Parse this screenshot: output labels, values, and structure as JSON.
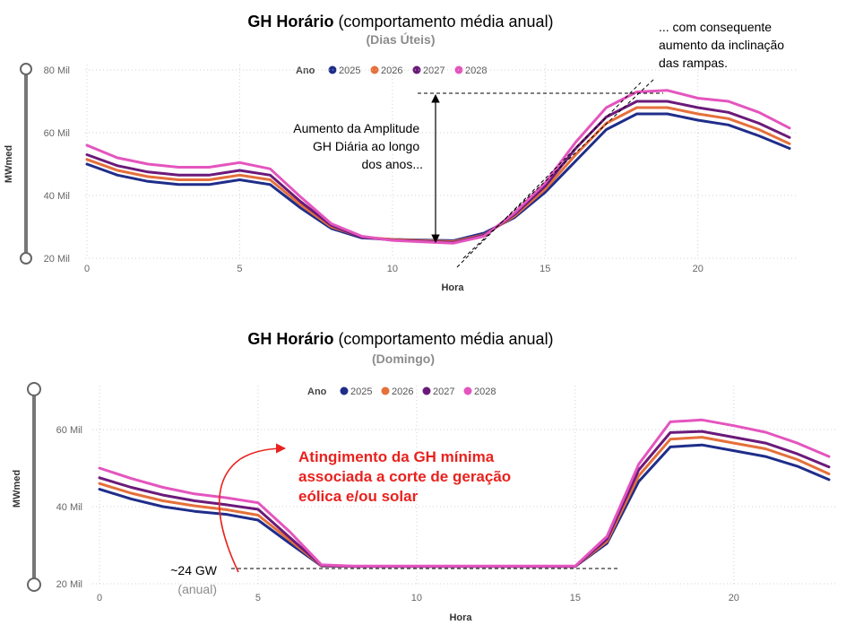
{
  "colors": {
    "s2025": "#1f2d8a",
    "s2026": "#e5703a",
    "s2027": "#6b1a7a",
    "s2028": "#e455be",
    "grid": "#d0d0d0",
    "tick": "#666666",
    "annotation_red": "#e8221e",
    "subtitle_gray": "#8c8c8c",
    "slider": "#777777"
  },
  "legend": {
    "title": "Ano",
    "years": [
      "2025",
      "2026",
      "2027",
      "2028"
    ]
  },
  "chart_data": [
    {
      "type": "line",
      "title_bold": "GH Horário",
      "title_rest": " (comportamento média anual)",
      "subtitle": "(Dias Úteis)",
      "xlabel": "Hora",
      "ylabel": "MWmed",
      "xlim": [
        0,
        23
      ],
      "ylim": [
        20,
        80
      ],
      "xticks": [
        0,
        5,
        10,
        15,
        20
      ],
      "yticks": [
        20,
        40,
        60,
        80
      ],
      "ytick_labels": [
        "20 Mil",
        "40 Mil",
        "60 Mil",
        "80 Mil"
      ],
      "grid": true,
      "legend_position": "top-left",
      "x": [
        0,
        1,
        2,
        3,
        4,
        5,
        6,
        7,
        8,
        9,
        10,
        11,
        12,
        13,
        14,
        15,
        16,
        17,
        18,
        19,
        20,
        21,
        22,
        23
      ],
      "series": [
        {
          "name": "2025",
          "values": [
            50,
            46.5,
            44.5,
            43.5,
            43.5,
            45,
            43.5,
            36,
            29.5,
            26.5,
            26,
            25.8,
            25.6,
            28,
            33,
            41,
            51,
            61,
            66,
            66,
            64,
            62.5,
            59,
            55
          ]
        },
        {
          "name": "2026",
          "values": [
            51.5,
            48,
            46,
            45,
            45,
            46.5,
            45,
            37,
            30,
            26.8,
            26,
            25.6,
            25.3,
            27.5,
            33.5,
            42,
            53,
            63,
            68,
            68,
            66,
            64.5,
            61,
            56.5
          ]
        },
        {
          "name": "2027",
          "values": [
            53,
            49.5,
            47.5,
            46.5,
            46.5,
            48,
            46.5,
            38,
            30.5,
            26.7,
            25.8,
            25.4,
            25,
            27.3,
            34,
            43,
            55,
            65,
            70,
            70,
            68,
            66.5,
            63,
            58.5
          ]
        },
        {
          "name": "2028",
          "values": [
            56,
            52,
            50,
            49,
            49,
            50.5,
            48.5,
            39.5,
            31,
            27,
            25.7,
            25.2,
            24.8,
            27,
            34.5,
            44,
            57,
            68,
            73,
            73.5,
            71,
            70,
            66.5,
            61.5
          ]
        }
      ],
      "annotations": [
        {
          "text_lines": [
            "Aumento da Amplitude",
            "GH Diária ao longo",
            "dos anos..."
          ]
        },
        {
          "text_lines": [
            "... com consequente",
            "aumento da inclinação",
            "das rampas."
          ]
        }
      ]
    },
    {
      "type": "line",
      "title_bold": "GH Horário",
      "title_rest": " (comportamento média anual)",
      "subtitle": "(Domingo)",
      "xlabel": "Hora",
      "ylabel": "MWmed",
      "xlim": [
        0,
        23
      ],
      "ylim": [
        20,
        70
      ],
      "xticks": [
        0,
        5,
        10,
        15,
        20
      ],
      "yticks": [
        20,
        40,
        60
      ],
      "ytick_labels": [
        "20 Mil",
        "40 Mil",
        "60 Mil"
      ],
      "grid": true,
      "legend_position": "top-left",
      "x": [
        0,
        1,
        2,
        3,
        4,
        5,
        6,
        7,
        8,
        9,
        10,
        11,
        12,
        13,
        14,
        15,
        16,
        17,
        18,
        19,
        20,
        21,
        22,
        23
      ],
      "series": [
        {
          "name": "2025",
          "values": [
            44.5,
            42,
            40,
            38.8,
            38,
            36.5,
            30.5,
            24.6,
            24.5,
            24.5,
            24.5,
            24.5,
            24.5,
            24.5,
            24.5,
            24.5,
            30.5,
            46.5,
            55.5,
            56,
            54.5,
            53,
            50.5,
            47
          ]
        },
        {
          "name": "2026",
          "values": [
            46,
            43.5,
            41.5,
            40.2,
            39.2,
            37.8,
            31.3,
            24.7,
            24.5,
            24.5,
            24.5,
            24.5,
            24.5,
            24.5,
            24.5,
            24.5,
            31,
            48,
            57.5,
            58,
            56.5,
            55,
            52.2,
            48.5
          ]
        },
        {
          "name": "2027",
          "values": [
            47.5,
            45,
            43,
            41.5,
            40.5,
            39.3,
            32,
            24.8,
            24.5,
            24.5,
            24.5,
            24.5,
            24.5,
            24.5,
            24.5,
            24.5,
            31.6,
            49.5,
            59.2,
            59.5,
            58,
            56.5,
            53.7,
            50.3
          ]
        },
        {
          "name": "2028",
          "values": [
            50,
            47.3,
            45,
            43.3,
            42.3,
            41,
            33.5,
            24.9,
            24.6,
            24.6,
            24.6,
            24.6,
            24.6,
            24.6,
            24.6,
            24.6,
            32.3,
            51,
            62,
            62.5,
            61,
            59.3,
            56.5,
            53
          ]
        }
      ],
      "annotations": [
        {
          "text_lines": [
            "Atingimento da GH mínima",
            "associada a corte de geração",
            "eólica e/ou solar"
          ]
        },
        {
          "text_lines": [
            "~24 GW",
            "(anual)"
          ]
        }
      ]
    }
  ]
}
